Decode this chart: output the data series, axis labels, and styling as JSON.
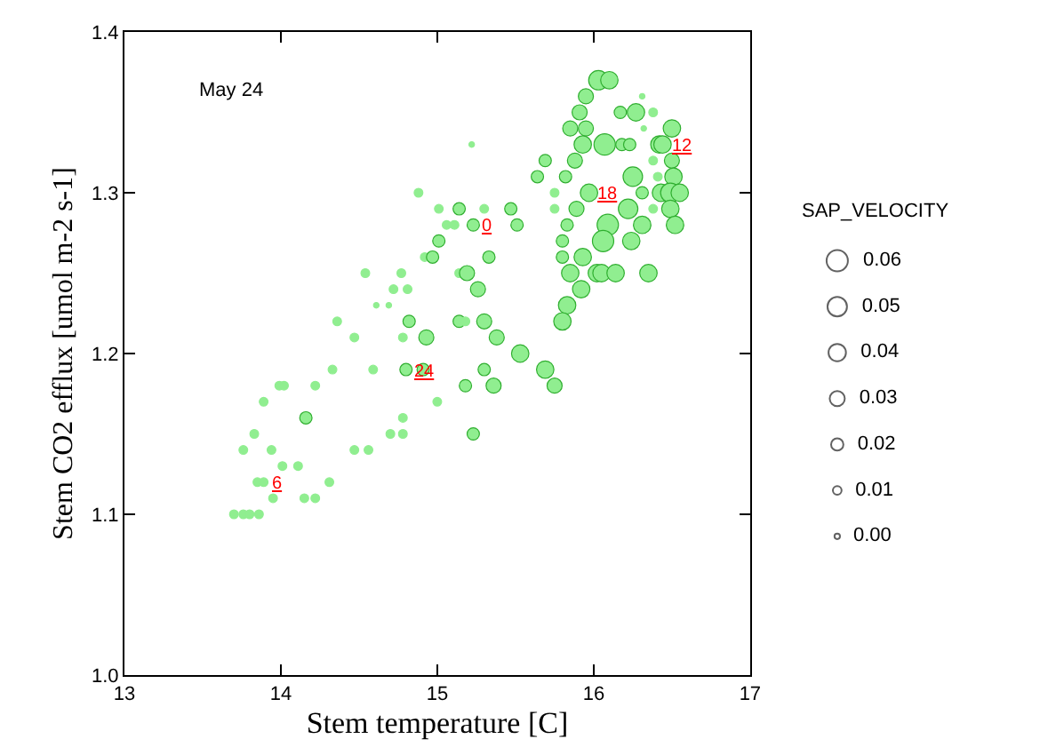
{
  "chart_data": {
    "type": "bubble",
    "xlabel": "Stem temperature [C]",
    "ylabel": "Stem CO2 efflux [umol m-2 s-1]",
    "legend_title": "SAP_VELOCITY",
    "marker": "circle",
    "grid": false,
    "color": "#90ee90",
    "xlim": [
      13,
      17
    ],
    "xticks": [
      13,
      14,
      15,
      16,
      17
    ],
    "ylim": [
      1.0,
      1.4
    ],
    "yticks": [
      {
        "value": 1.0,
        "label": "1.0"
      },
      {
        "value": 1.1,
        "label": "1.1"
      },
      {
        "value": 1.2,
        "label": "1.2"
      },
      {
        "value": 1.3,
        "label": "1.3"
      },
      {
        "value": 1.4,
        "label": "1.4"
      }
    ],
    "size_legend": [
      {
        "value": 0.06,
        "label": "0.06"
      },
      {
        "value": 0.05,
        "label": "0.05"
      },
      {
        "value": 0.04,
        "label": "0.04"
      },
      {
        "value": 0.03,
        "label": "0.03"
      },
      {
        "value": 0.02,
        "label": "0.02"
      },
      {
        "value": 0.01,
        "label": "0.01"
      },
      {
        "value": 0.004,
        "label": "0.00"
      }
    ],
    "x": [
      14.54,
      14.77,
      15.14,
      15.19,
      14.72,
      14.81,
      15.26,
      14.61,
      14.69,
      14.36,
      14.82,
      15.14,
      15.18,
      15.3,
      14.47,
      14.78,
      14.93,
      15.38,
      15.53,
      14.33,
      14.59,
      14.8,
      14.91,
      15.3,
      15.69,
      13.99,
      14.02,
      14.22,
      15.18,
      15.36,
      15.75,
      13.89,
      15.0,
      14.16,
      14.78,
      13.83,
      14.7,
      14.78,
      15.23,
      13.76,
      13.94,
      14.47,
      14.56,
      14.01,
      14.11,
      13.85,
      13.89,
      14.31,
      13.95,
      14.15,
      14.22,
      13.7,
      13.76,
      13.8,
      13.86,
      15.22,
      15.69,
      15.64,
      15.75,
      15.75,
      14.88,
      15.01,
      15.14,
      15.3,
      15.47,
      15.06,
      15.11,
      15.23,
      15.51,
      15.01,
      14.92,
      14.97,
      15.33,
      16.03,
      16.1,
      15.95,
      16.31,
      15.91,
      16.17,
      16.27,
      16.38,
      15.85,
      15.95,
      16.32,
      16.5,
      15.93,
      16.07,
      16.18,
      16.23,
      16.42,
      16.44,
      15.88,
      16.38,
      16.5,
      15.82,
      16.25,
      16.41,
      16.51,
      15.97,
      16.31,
      16.43,
      16.49,
      16.55,
      15.89,
      16.22,
      16.38,
      16.49,
      15.83,
      16.09,
      16.31,
      16.52,
      15.8,
      16.06,
      16.24,
      15.8,
      15.93,
      15.85,
      16.02,
      16.05,
      16.14,
      16.35,
      15.92,
      15.83,
      15.8
    ],
    "values": [
      1.25,
      1.25,
      1.25,
      1.25,
      1.24,
      1.24,
      1.24,
      1.23,
      1.23,
      1.22,
      1.22,
      1.22,
      1.22,
      1.22,
      1.21,
      1.21,
      1.21,
      1.21,
      1.2,
      1.19,
      1.19,
      1.19,
      1.19,
      1.19,
      1.19,
      1.18,
      1.18,
      1.18,
      1.18,
      1.18,
      1.18,
      1.17,
      1.17,
      1.16,
      1.16,
      1.15,
      1.15,
      1.15,
      1.15,
      1.14,
      1.14,
      1.14,
      1.14,
      1.13,
      1.13,
      1.12,
      1.12,
      1.12,
      1.11,
      1.11,
      1.11,
      1.1,
      1.1,
      1.1,
      1.1,
      1.33,
      1.32,
      1.31,
      1.3,
      1.29,
      1.3,
      1.29,
      1.29,
      1.29,
      1.29,
      1.28,
      1.28,
      1.28,
      1.28,
      1.27,
      1.26,
      1.26,
      1.26,
      1.37,
      1.37,
      1.36,
      1.36,
      1.35,
      1.35,
      1.35,
      1.35,
      1.34,
      1.34,
      1.34,
      1.34,
      1.33,
      1.33,
      1.33,
      1.33,
      1.33,
      1.33,
      1.32,
      1.32,
      1.32,
      1.31,
      1.31,
      1.31,
      1.31,
      1.3,
      1.3,
      1.3,
      1.3,
      1.3,
      1.29,
      1.29,
      1.29,
      1.29,
      1.28,
      1.28,
      1.28,
      1.28,
      1.27,
      1.27,
      1.27,
      1.26,
      1.26,
      1.25,
      1.25,
      1.25,
      1.25,
      1.25,
      1.24,
      1.23,
      1.22
    ],
    "sizes": [
      0.01,
      0.01,
      0.01,
      0.03,
      0.01,
      0.01,
      0.03,
      0.004,
      0.004,
      0.01,
      0.02,
      0.02,
      0.01,
      0.03,
      0.01,
      0.01,
      0.03,
      0.03,
      0.04,
      0.01,
      0.01,
      0.02,
      0.02,
      0.02,
      0.04,
      0.01,
      0.01,
      0.01,
      0.02,
      0.03,
      0.03,
      0.01,
      0.01,
      0.02,
      0.01,
      0.01,
      0.01,
      0.01,
      0.02,
      0.01,
      0.01,
      0.01,
      0.01,
      0.01,
      0.01,
      0.01,
      0.01,
      0.01,
      0.01,
      0.01,
      0.01,
      0.01,
      0.01,
      0.01,
      0.01,
      0.004,
      0.02,
      0.02,
      0.01,
      0.01,
      0.01,
      0.01,
      0.02,
      0.01,
      0.02,
      0.01,
      0.01,
      0.02,
      0.02,
      0.02,
      0.01,
      0.02,
      0.02,
      0.05,
      0.04,
      0.03,
      0.004,
      0.03,
      0.02,
      0.04,
      0.01,
      0.03,
      0.03,
      0.004,
      0.04,
      0.04,
      0.06,
      0.02,
      0.02,
      0.04,
      0.04,
      0.03,
      0.01,
      0.03,
      0.02,
      0.05,
      0.01,
      0.04,
      0.04,
      0.02,
      0.04,
      0.05,
      0.04,
      0.03,
      0.05,
      0.01,
      0.04,
      0.02,
      0.06,
      0.04,
      0.04,
      0.02,
      0.06,
      0.04,
      0.02,
      0.04,
      0.04,
      0.04,
      0.04,
      0.04,
      0.04,
      0.04,
      0.04,
      0.04
    ],
    "annotations": [
      "May 24",
      {
        "text": "0",
        "x": 15.23,
        "y": 1.28
      },
      {
        "text": "6",
        "x": 13.89,
        "y": 1.12
      },
      {
        "text": "12",
        "x": 16.44,
        "y": 1.33
      },
      {
        "text": "18",
        "x": 15.97,
        "y": 1.3
      },
      {
        "text": "24",
        "x": 14.8,
        "y": 1.19
      }
    ]
  }
}
